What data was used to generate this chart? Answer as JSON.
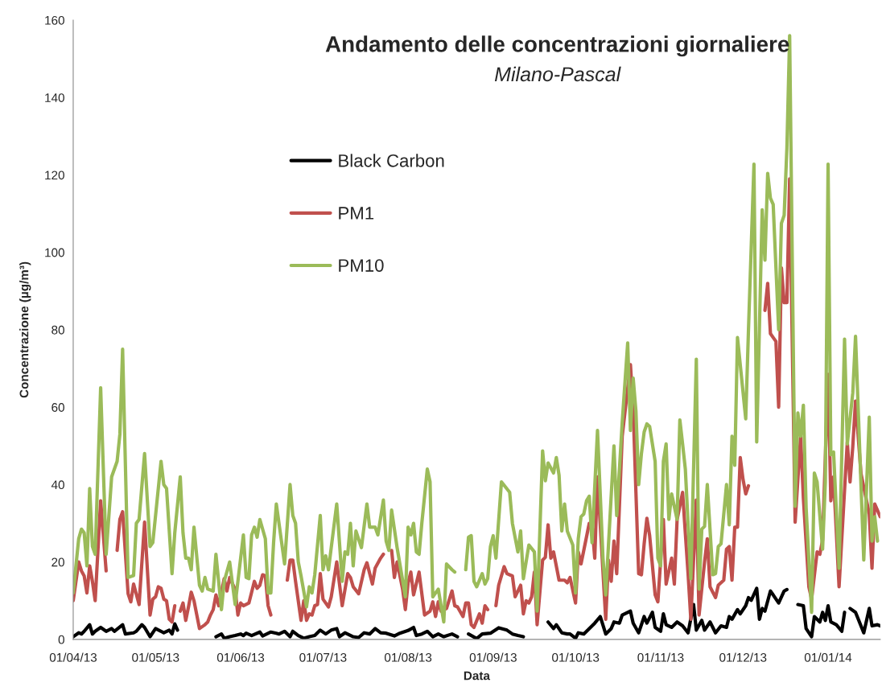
{
  "chart_data": {
    "type": "line",
    "title": "Andamento delle concentrazioni giornaliere",
    "subtitle": "Milano-Pascal",
    "xlabel": "Data",
    "ylabel": "Concentrazione (µg/m³)",
    "xlim": [
      "2013-04-01",
      "2014-01-20"
    ],
    "xticks": [
      {
        "value": "2013-04-01",
        "label": "01/04/13"
      },
      {
        "value": "2013-05-01",
        "label": "01/05/13"
      },
      {
        "value": "2013-06-01",
        "label": "01/06/13"
      },
      {
        "value": "2013-07-01",
        "label": "01/07/13"
      },
      {
        "value": "2013-08-01",
        "label": "01/08/13"
      },
      {
        "value": "2013-09-01",
        "label": "01/09/13"
      },
      {
        "value": "2013-10-01",
        "label": "01/10/13"
      },
      {
        "value": "2013-11-01",
        "label": "01/11/13"
      },
      {
        "value": "2013-12-01",
        "label": "01/12/13"
      },
      {
        "value": "2014-01-01",
        "label": "01/01/14"
      }
    ],
    "ylim": [
      0,
      160
    ],
    "yticks": [
      0,
      20,
      40,
      60,
      80,
      100,
      120,
      140,
      160
    ],
    "grid": false,
    "legend": "top left",
    "marker": "none",
    "line_style": "solid",
    "series": [
      {
        "name": "Black Carbon",
        "color": "#000000",
        "x": [
          "2013-04-01",
          "2013-04-03",
          "2013-04-04",
          "2013-04-05",
          "2013-04-07",
          "2013-04-08",
          "2013-04-09",
          "2013-04-11",
          "2013-04-13",
          "2013-04-15",
          "2013-04-16",
          "2013-04-19",
          "2013-04-20",
          "2013-04-23",
          "2013-04-24",
          "2013-04-26",
          "2013-04-27",
          "2013-04-29",
          "2013-05-01",
          "2013-05-03",
          "2013-05-04",
          "2013-05-06",
          "2013-05-07",
          "2013-05-08",
          "2013-05-09",
          "2013-05-16",
          "2013-05-23",
          "2013-05-25",
          "2013-05-26",
          "2013-05-28",
          "2013-05-30",
          "2013-06-01",
          "2013-06-02",
          "2013-06-03",
          "2013-06-05",
          "2013-06-08",
          "2013-06-09",
          "2013-06-12",
          "2013-06-14",
          "2013-06-15",
          "2013-06-17",
          "2013-06-19",
          "2013-06-20",
          "2013-06-22",
          "2013-06-24",
          "2013-06-26",
          "2013-06-28",
          "2013-06-30",
          "2013-07-02",
          "2013-07-04",
          "2013-07-06",
          "2013-07-07",
          "2013-07-09",
          "2013-07-12",
          "2013-07-14",
          "2013-07-16",
          "2013-07-18",
          "2013-07-20",
          "2013-07-22",
          "2013-07-24",
          "2013-07-27",
          "2013-07-29",
          "2013-08-01",
          "2013-08-03",
          "2013-08-04",
          "2013-08-06",
          "2013-08-08",
          "2013-08-10",
          "2013-08-12",
          "2013-08-14",
          "2013-08-17",
          "2013-08-19",
          "2013-08-21",
          "2013-08-23",
          "2013-08-26",
          "2013-08-28",
          "2013-08-31",
          "2013-09-03",
          "2013-09-06",
          "2013-09-08",
          "2013-09-10",
          "2013-09-12",
          "2013-09-16",
          "2013-09-21",
          "2013-09-23",
          "2013-09-24",
          "2013-09-26",
          "2013-09-28",
          "2013-09-29",
          "2013-10-01",
          "2013-10-02",
          "2013-10-04",
          "2013-10-06",
          "2013-10-08",
          "2013-10-10",
          "2013-10-12",
          "2013-10-14",
          "2013-10-15",
          "2013-10-17",
          "2013-10-18",
          "2013-10-21",
          "2013-10-22",
          "2013-10-24",
          "2013-10-26",
          "2013-10-27",
          "2013-10-29",
          "2013-10-30",
          "2013-11-01",
          "2013-11-02",
          "2013-11-03",
          "2013-11-05",
          "2013-11-07",
          "2013-11-09",
          "2013-11-11",
          "2013-11-13",
          "2013-11-14",
          "2013-11-16",
          "2013-11-17",
          "2013-11-19",
          "2013-11-21",
          "2013-11-23",
          "2013-11-25",
          "2013-11-26",
          "2013-11-27",
          "2013-11-29",
          "2013-11-30",
          "2013-12-02",
          "2013-12-03",
          "2013-12-04",
          "2013-12-06",
          "2013-12-07",
          "2013-12-08",
          "2013-12-09",
          "2013-12-11",
          "2013-12-12",
          "2013-12-14",
          "2013-12-16",
          "2013-12-17",
          "2013-12-19",
          "2013-12-21",
          "2013-12-23",
          "2013-12-24",
          "2013-12-26",
          "2013-12-27",
          "2013-12-29",
          "2013-12-30",
          "2013-12-31",
          "2014-01-01",
          "2014-01-02",
          "2014-01-04",
          "2014-01-06",
          "2014-01-07",
          "2014-01-08",
          "2014-01-09",
          "2014-01-11",
          "2014-01-14",
          "2014-01-16",
          "2014-01-17",
          "2014-01-19",
          "2014-01-20"
        ],
        "values": [
          0.7,
          1.7,
          1.4,
          2.1,
          3.8,
          1.4,
          2.1,
          3.1,
          2.1,
          2.8,
          2.1,
          3.8,
          1.4,
          1.7,
          2.1,
          3.8,
          3.1,
          0.7,
          2.8,
          2.1,
          1.7,
          2.4,
          1.4,
          4,
          2.4,
          null,
          0.7,
          1.4,
          0.3,
          0.7,
          1,
          1.4,
          1,
          1.6,
          1,
          1.9,
          0.9,
          1.9,
          1.6,
          1.4,
          2.1,
          0.7,
          2.1,
          1,
          0.3,
          0.7,
          1,
          2.4,
          1.4,
          2.4,
          2.8,
          0.7,
          1.7,
          0.7,
          0.5,
          1.7,
          1.4,
          2.8,
          1.7,
          1.6,
          0.9,
          1.6,
          2.3,
          3.1,
          1,
          1.4,
          2.1,
          0.7,
          1.4,
          0.7,
          1.4,
          0.7,
          null,
          1.4,
          0.2,
          1.4,
          1.6,
          3,
          2.4,
          1.4,
          1,
          0.7,
          null,
          4.5,
          2.8,
          3.8,
          1.7,
          1.4,
          1.4,
          0.3,
          1.7,
          1.4,
          2.8,
          4.2,
          5.9,
          1.4,
          2.8,
          4.5,
          4.2,
          6.3,
          7.3,
          4.2,
          1.7,
          5.9,
          4.2,
          7,
          3.1,
          2.1,
          6.6,
          3.8,
          3.1,
          4.5,
          3.5,
          1.7,
          9,
          2.4,
          4.9,
          2.4,
          4.5,
          1.7,
          3.5,
          3.1,
          5.9,
          5.2,
          7.7,
          6.6,
          8.7,
          10.8,
          10.1,
          13.2,
          5.2,
          8,
          7.3,
          12.5,
          11.5,
          9.4,
          12.5,
          12.9,
          null,
          9,
          8.7,
          2.8,
          0.7,
          5.9,
          4.5,
          7,
          4.9,
          8.7,
          4.5,
          3.8,
          2.1,
          7,
          null,
          8,
          7,
          1.7,
          8,
          3.5,
          3.8,
          3.5
        ]
      },
      {
        "name": "PM1",
        "color": "#c0504d",
        "x": [
          "2013-04-01",
          "2013-04-03",
          "2013-04-04",
          "2013-04-05",
          "2013-04-06",
          "2013-04-07",
          "2013-04-08",
          "2013-04-09",
          "2013-04-11",
          "2013-04-13",
          "2013-04-15",
          "2013-04-17",
          "2013-04-18",
          "2013-04-19",
          "2013-04-21",
          "2013-04-22",
          "2013-04-23",
          "2013-04-25",
          "2013-04-27",
          "2013-04-29",
          "2013-04-30",
          "2013-05-01",
          "2013-05-02",
          "2013-05-03",
          "2013-05-04",
          "2013-05-05",
          "2013-05-06",
          "2013-05-07",
          "2013-05-08",
          "2013-05-09",
          "2013-05-10",
          "2013-05-11",
          "2013-05-12",
          "2013-05-13",
          "2013-05-14",
          "2013-05-15",
          "2013-05-17",
          "2013-05-19",
          "2013-05-20",
          "2013-05-21",
          "2013-05-22",
          "2013-05-23",
          "2013-05-24",
          "2013-05-26",
          "2013-05-27",
          "2013-05-28",
          "2013-05-30",
          "2013-05-31",
          "2013-06-01",
          "2013-06-02",
          "2013-06-04",
          "2013-06-05",
          "2013-06-06",
          "2013-06-07",
          "2013-06-08",
          "2013-06-09",
          "2013-06-10",
          "2013-06-11",
          "2013-06-12",
          "2013-06-15",
          "2013-06-18",
          "2013-06-19",
          "2013-06-20",
          "2013-06-21",
          "2013-06-23",
          "2013-06-24",
          "2013-06-25",
          "2013-06-26",
          "2013-06-27",
          "2013-06-28",
          "2013-06-29",
          "2013-06-30",
          "2013-07-01",
          "2013-07-03",
          "2013-07-04",
          "2013-07-06",
          "2013-07-08",
          "2013-07-10",
          "2013-07-11",
          "2013-07-12",
          "2013-07-14",
          "2013-07-16",
          "2013-07-17",
          "2013-07-19",
          "2013-07-20",
          "2013-07-22",
          "2013-07-23",
          "2013-07-24",
          "2013-07-26",
          "2013-07-27",
          "2013-07-28",
          "2013-07-30",
          "2013-07-31",
          "2013-08-01",
          "2013-08-02",
          "2013-08-03",
          "2013-08-05",
          "2013-08-07",
          "2013-08-09",
          "2013-08-10",
          "2013-08-11",
          "2013-08-12",
          "2013-08-13",
          "2013-08-15",
          "2013-08-17",
          "2013-08-18",
          "2013-08-19",
          "2013-08-21",
          "2013-08-22",
          "2013-08-23",
          "2013-08-24",
          "2013-08-25",
          "2013-08-27",
          "2013-08-28",
          "2013-08-29",
          "2013-08-30",
          "2013-08-31",
          "2013-09-02",
          "2013-09-03",
          "2013-09-05",
          "2013-09-06",
          "2013-09-08",
          "2013-09-09",
          "2013-09-11",
          "2013-09-12",
          "2013-09-13",
          "2013-09-14",
          "2013-09-15",
          "2013-09-16",
          "2013-09-17",
          "2013-09-19",
          "2013-09-20",
          "2013-09-21",
          "2013-09-22",
          "2013-09-23",
          "2013-09-25",
          "2013-09-27",
          "2013-09-28",
          "2013-09-29",
          "2013-10-01",
          "2013-10-02",
          "2013-10-03",
          "2013-10-04",
          "2013-10-06",
          "2013-10-07",
          "2013-10-08",
          "2013-10-09",
          "2013-10-12",
          "2013-10-13",
          "2013-10-14",
          "2013-10-15",
          "2013-10-16",
          "2013-10-18",
          "2013-10-21",
          "2013-10-22",
          "2013-10-23",
          "2013-10-24",
          "2013-10-25",
          "2013-10-26",
          "2013-10-27",
          "2013-10-28",
          "2013-10-30",
          "2013-10-31",
          "2013-11-02",
          "2013-11-03",
          "2013-11-05",
          "2013-11-06",
          "2013-11-07",
          "2013-11-09",
          "2013-11-11",
          "2013-11-12",
          "2013-11-14",
          "2013-11-15",
          "2013-11-17",
          "2013-11-18",
          "2013-11-19",
          "2013-11-21",
          "2013-11-22",
          "2013-11-24",
          "2013-11-25",
          "2013-11-26",
          "2013-11-27",
          "2013-11-28",
          "2013-11-29",
          "2013-11-30",
          "2013-12-01",
          "2013-12-02",
          "2013-12-03",
          "2013-12-06",
          "2013-12-09",
          "2013-12-10",
          "2013-12-11",
          "2013-12-12",
          "2013-12-13",
          "2013-12-14",
          "2013-12-15",
          "2013-12-16",
          "2013-12-17",
          "2013-12-18",
          "2013-12-20",
          "2013-12-22",
          "2013-12-23",
          "2013-12-25",
          "2013-12-26",
          "2013-12-28",
          "2013-12-29",
          "2013-12-30",
          "2014-01-01",
          "2014-01-02",
          "2014-01-03",
          "2014-01-05",
          "2014-01-08",
          "2014-01-09",
          "2014-01-10",
          "2014-01-11",
          "2014-01-13",
          "2014-01-16",
          "2014-01-17",
          "2014-01-18",
          "2014-01-20"
        ],
        "values": [
          10,
          20,
          17.7,
          16.4,
          12,
          19,
          15,
          10,
          35.8,
          17.7,
          null,
          23,
          31,
          33,
          11.8,
          9.7,
          14.3,
          9,
          30.3,
          6.3,
          10.4,
          11,
          13.6,
          13.2,
          10.4,
          10,
          5.2,
          4.5,
          8.7,
          null,
          7.3,
          9.4,
          4.9,
          8.4,
          12.2,
          10,
          2.8,
          3.8,
          4.5,
          6.3,
          7.7,
          11.5,
          8.7,
          15.7,
          12.5,
          16,
          12.9,
          6.3,
          9.4,
          8.7,
          9.4,
          12.2,
          15,
          13.2,
          14,
          16.7,
          16.4,
          8.7,
          6.3,
          null,
          15.3,
          20.5,
          20.5,
          15,
          4.9,
          10,
          4.9,
          6.6,
          6.3,
          8.7,
          9,
          17,
          10.4,
          8.4,
          11,
          20,
          8.7,
          17,
          16,
          13.6,
          11.8,
          18,
          19.8,
          14.3,
          18.4,
          21,
          22,
          null,
          23,
          16,
          20,
          13,
          7.7,
          14.6,
          17.4,
          11.5,
          17.4,
          6.3,
          7.3,
          9.7,
          5.9,
          9.7,
          7.3,
          8,
          12.5,
          8.7,
          8.4,
          5.9,
          9.4,
          9.4,
          3.8,
          3.1,
          6.6,
          4.2,
          8.7,
          7.7,
          null,
          8.7,
          14,
          18.8,
          17,
          16.4,
          11,
          14,
          6.6,
          10,
          9.4,
          11,
          17.4,
          3.8,
          20.5,
          21.2,
          29.6,
          21,
          22.6,
          15.3,
          15.3,
          14.6,
          16,
          9.4,
          22.6,
          19.5,
          23,
          30,
          29.6,
          21,
          42,
          5.2,
          20.5,
          15,
          25.4,
          17,
          52.5,
          71,
          59.5,
          38,
          17,
          16.7,
          24.7,
          31.3,
          26.8,
          11.5,
          9.7,
          31,
          14.3,
          21,
          14.3,
          31,
          38,
          17,
          5.2,
          36,
          6.3,
          20,
          26,
          13.6,
          10.8,
          14,
          15.3,
          23.3,
          24,
          15.3,
          29,
          29,
          47,
          41.4,
          37.6,
          39.7,
          null,
          85,
          92,
          79,
          78,
          77,
          60,
          96,
          87,
          87,
          119,
          30.3,
          52.5,
          36.5,
          13.6,
          10.4,
          22.6,
          22,
          25.7,
          68.5,
          35.8,
          42,
          13.6,
          51,
          40.7,
          49.8,
          61.6,
          42.8,
          32.4,
          18.4,
          35,
          31.7
        ]
      },
      {
        "name": "PM10",
        "color": "#9bbb59",
        "x": [
          "2013-04-01",
          "2013-04-03",
          "2013-04-04",
          "2013-04-05",
          "2013-04-06",
          "2013-04-07",
          "2013-04-08",
          "2013-04-09",
          "2013-04-11",
          "2013-04-13",
          "2013-04-15",
          "2013-04-17",
          "2013-04-18",
          "2013-04-19",
          "2013-04-21",
          "2013-04-23",
          "2013-04-24",
          "2013-04-25",
          "2013-04-27",
          "2013-04-29",
          "2013-04-30",
          "2013-05-03",
          "2013-05-04",
          "2013-05-05",
          "2013-05-07",
          "2013-05-08",
          "2013-05-10",
          "2013-05-11",
          "2013-05-12",
          "2013-05-13",
          "2013-05-14",
          "2013-05-15",
          "2013-05-17",
          "2013-05-18",
          "2013-05-19",
          "2013-05-20",
          "2013-05-22",
          "2013-05-23",
          "2013-05-25",
          "2013-05-26",
          "2013-05-28",
          "2013-05-30",
          "2013-06-02",
          "2013-06-03",
          "2013-06-04",
          "2013-06-05",
          "2013-06-06",
          "2013-06-07",
          "2013-06-08",
          "2013-06-10",
          "2013-06-11",
          "2013-06-12",
          "2013-06-13",
          "2013-06-14",
          "2013-06-17",
          "2013-06-19",
          "2013-06-20",
          "2013-06-21",
          "2013-06-22",
          "2013-06-23",
          "2013-06-25",
          "2013-06-26",
          "2013-06-27",
          "2013-06-28",
          "2013-06-30",
          "2013-07-01",
          "2013-07-02",
          "2013-07-03",
          "2013-07-04",
          "2013-07-06",
          "2013-07-08",
          "2013-07-09",
          "2013-07-10",
          "2013-07-11",
          "2013-07-12",
          "2013-07-13",
          "2013-07-15",
          "2013-07-17",
          "2013-07-18",
          "2013-07-20",
          "2013-07-21",
          "2013-07-23",
          "2013-07-24",
          "2013-07-25",
          "2013-07-26",
          "2013-07-28",
          "2013-07-29",
          "2013-07-31",
          "2013-08-01",
          "2013-08-02",
          "2013-08-03",
          "2013-08-04",
          "2013-08-05",
          "2013-08-06",
          "2013-08-08",
          "2013-08-09",
          "2013-08-10",
          "2013-08-12",
          "2013-08-14",
          "2013-08-15",
          "2013-08-17",
          "2013-08-18",
          "2013-08-20",
          "2013-08-22",
          "2013-08-23",
          "2013-08-24",
          "2013-08-25",
          "2013-08-26",
          "2013-08-28",
          "2013-08-29",
          "2013-08-30",
          "2013-08-31",
          "2013-09-01",
          "2013-09-02",
          "2013-09-04",
          "2013-09-07",
          "2013-09-08",
          "2013-09-10",
          "2013-09-11",
          "2013-09-12",
          "2013-09-14",
          "2013-09-16",
          "2013-09-17",
          "2013-09-19",
          "2013-09-20",
          "2013-09-21",
          "2013-09-23",
          "2013-09-24",
          "2013-09-25",
          "2013-09-26",
          "2013-09-27",
          "2013-09-28",
          "2013-09-30",
          "2013-10-01",
          "2013-10-02",
          "2013-10-03",
          "2013-10-04",
          "2013-10-05",
          "2013-10-06",
          "2013-10-07",
          "2013-10-09",
          "2013-10-11",
          "2013-10-12",
          "2013-10-13",
          "2013-10-15",
          "2013-10-16",
          "2013-10-18",
          "2013-10-20",
          "2013-10-21",
          "2013-10-22",
          "2013-10-23",
          "2013-10-24",
          "2013-10-25",
          "2013-10-26",
          "2013-10-27",
          "2013-10-28",
          "2013-10-30",
          "2013-10-31",
          "2013-11-01",
          "2013-11-02",
          "2013-11-03",
          "2013-11-04",
          "2013-11-05",
          "2013-11-07",
          "2013-11-08",
          "2013-11-09",
          "2013-11-10",
          "2013-11-12",
          "2013-11-14",
          "2013-11-15",
          "2013-11-16",
          "2013-11-17",
          "2013-11-18",
          "2013-11-20",
          "2013-11-21",
          "2013-11-22",
          "2013-11-23",
          "2013-11-25",
          "2013-11-26",
          "2013-11-27",
          "2013-11-28",
          "2013-11-29",
          "2013-12-02",
          "2013-12-03",
          "2013-12-05",
          "2013-12-06",
          "2013-12-08",
          "2013-12-09",
          "2013-12-10",
          "2013-12-11",
          "2013-12-12",
          "2013-12-14",
          "2013-12-15",
          "2013-12-16",
          "2013-12-17",
          "2013-12-18",
          "2013-12-20",
          "2013-12-21",
          "2013-12-22",
          "2013-12-23",
          "2013-12-24",
          "2013-12-26",
          "2013-12-27",
          "2013-12-28",
          "2013-12-30",
          "2013-12-31",
          "2014-01-01",
          "2014-01-02",
          "2014-01-03",
          "2014-01-05",
          "2014-01-07",
          "2014-01-08",
          "2014-01-10",
          "2014-01-11",
          "2014-01-14",
          "2014-01-16",
          "2014-01-17",
          "2014-01-18",
          "2014-01-19"
        ],
        "values": [
          12,
          26,
          28.5,
          27.5,
          19,
          39,
          24,
          22,
          65,
          22,
          42,
          46,
          53,
          75,
          16,
          16.5,
          30,
          31,
          48,
          24,
          25,
          46,
          40,
          39,
          17,
          27.5,
          42,
          27.5,
          21,
          21,
          18,
          29,
          14,
          12.5,
          16,
          13,
          12.5,
          22,
          7.7,
          15,
          20,
          9,
          27,
          16,
          15.7,
          27,
          29,
          26.4,
          31,
          26,
          12,
          12,
          25,
          35,
          19.5,
          40,
          32,
          30,
          20,
          16.4,
          8.4,
          13.6,
          12,
          16.7,
          32,
          18,
          21.6,
          18,
          23.7,
          35,
          15,
          22.6,
          22,
          30,
          19,
          28,
          23.7,
          35,
          29,
          29,
          27,
          36,
          25.4,
          23,
          33.4,
          23.7,
          19.5,
          11,
          29,
          27,
          30,
          22.6,
          22,
          30,
          44,
          40.7,
          11,
          13,
          4.5,
          19.5,
          18,
          17.4,
          null,
          18,
          26.4,
          26.8,
          15,
          13.6,
          17,
          14.3,
          15.7,
          24,
          26.8,
          21,
          40.7,
          38,
          30,
          22.6,
          28,
          15.7,
          24.4,
          22.6,
          7.3,
          48.7,
          41,
          45.6,
          43,
          47,
          42.4,
          28,
          35,
          28,
          24.4,
          12,
          26,
          31.7,
          32.4,
          35.8,
          37,
          25,
          54,
          21,
          11.5,
          24.4,
          50,
          32,
          56,
          76.6,
          54,
          67.5,
          59,
          40,
          48,
          53.6,
          55.7,
          55,
          46,
          21,
          19,
          46,
          50.5,
          31,
          37.6,
          31,
          56.7,
          50.5,
          44,
          15.7,
          72.4,
          13,
          28.5,
          29.2,
          40,
          16.7,
          17,
          24,
          24.7,
          40,
          29.6,
          52.5,
          45,
          78,
          57,
          80,
          122.8,
          51,
          111,
          98,
          120.4,
          114,
          112.4,
          80,
          107.5,
          109.6,
          127,
          156,
          34.4,
          58.5,
          52.5,
          60.5,
          34,
          7,
          43,
          40.7,
          23.3,
          40.7,
          122.8,
          47.7,
          48.4,
          18.4,
          77.6,
          50.5,
          63.7,
          78.3,
          20.5,
          57.4,
          25.4,
          31.7,
          25.4
        ]
      }
    ]
  }
}
